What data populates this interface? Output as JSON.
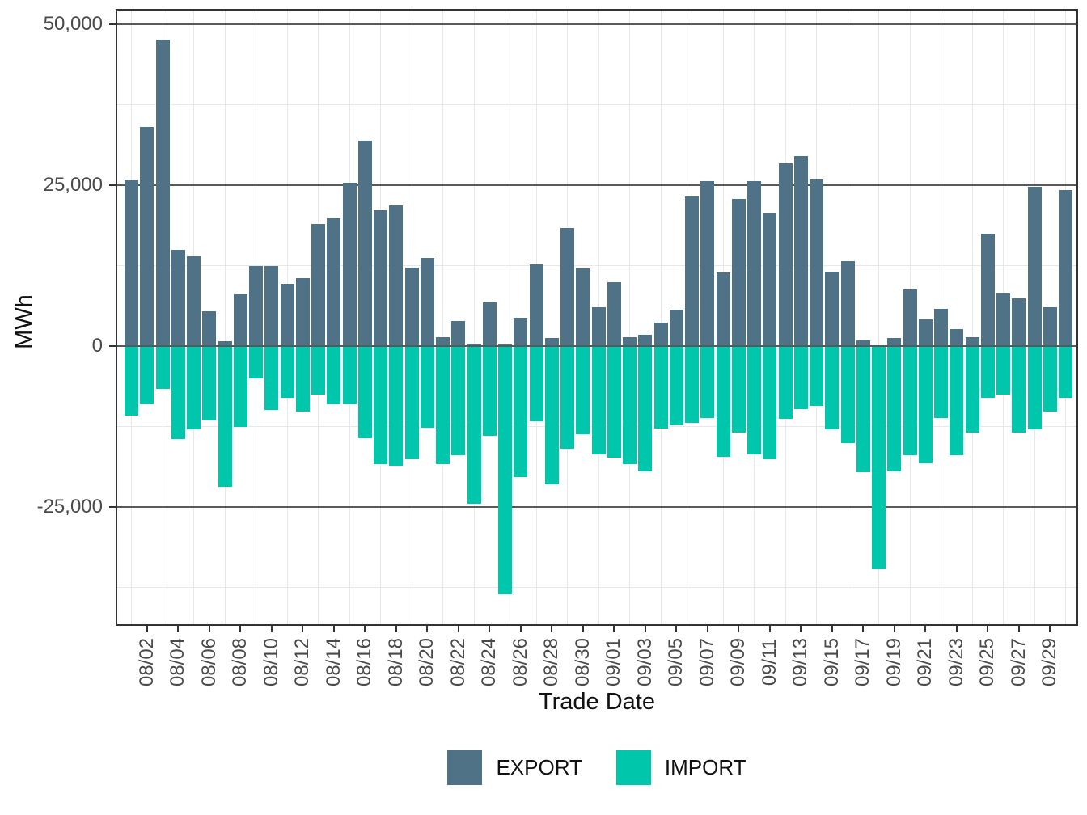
{
  "chart_data": {
    "type": "bar",
    "title": "",
    "xlabel": "Trade Date",
    "ylabel": "MWh",
    "legend_position": "bottom",
    "grid": true,
    "categories": [
      "08/01",
      "08/02",
      "08/03",
      "08/04",
      "08/05",
      "08/06",
      "08/07",
      "08/08",
      "08/09",
      "08/10",
      "08/11",
      "08/12",
      "08/13",
      "08/14",
      "08/15",
      "08/16",
      "08/17",
      "08/18",
      "08/19",
      "08/20",
      "08/21",
      "08/22",
      "08/23",
      "08/24",
      "08/25",
      "08/26",
      "08/27",
      "08/28",
      "08/29",
      "08/30",
      "08/31",
      "09/01",
      "09/02",
      "09/03",
      "09/04",
      "09/05",
      "09/06",
      "09/07",
      "09/08",
      "09/09",
      "09/10",
      "09/11",
      "09/12",
      "09/13",
      "09/14",
      "09/15",
      "09/16",
      "09/17",
      "09/18",
      "09/19",
      "09/20",
      "09/21",
      "09/22",
      "09/23",
      "09/24",
      "09/25",
      "09/26",
      "09/27",
      "09/28",
      "09/29",
      "09/30"
    ],
    "series": [
      {
        "name": "EXPORT",
        "color": "#4F7286",
        "values": [
          25800,
          34100,
          47600,
          14900,
          14000,
          5400,
          700,
          8100,
          12400,
          12400,
          9700,
          10600,
          19000,
          19800,
          25400,
          31900,
          21100,
          21800,
          12200,
          13700,
          1400,
          3900,
          400,
          6800,
          300,
          4400,
          12700,
          1300,
          18300,
          12100,
          6000,
          9900,
          1400,
          1700,
          3700,
          5600,
          23300,
          25600,
          11400,
          22900,
          25600,
          20600,
          28400,
          29500,
          25900,
          11600,
          13200,
          900,
          0,
          1200,
          8800,
          4200,
          5800,
          2600,
          1400,
          17400,
          8200,
          7400,
          24800,
          6000,
          24300
        ]
      },
      {
        "name": "IMPORT",
        "color": "#00C6AC",
        "values": [
          -10800,
          -9100,
          -6700,
          -14400,
          -12900,
          -11500,
          -21900,
          -12600,
          -5000,
          -9900,
          -8000,
          -10200,
          -7600,
          -9100,
          -9000,
          -14300,
          -18400,
          -18600,
          -17600,
          -12700,
          -18300,
          -16900,
          -24500,
          -14000,
          -38600,
          -20300,
          -11700,
          -21500,
          -16000,
          -13700,
          -16800,
          -17300,
          -18300,
          -19500,
          -12800,
          -12300,
          -11900,
          -11200,
          -17200,
          -13400,
          -16800,
          -17600,
          -11300,
          -9800,
          -9300,
          -13000,
          -15100,
          -19600,
          -34700,
          -19500,
          -16900,
          -18200,
          -11200,
          -17000,
          -13500,
          -8100,
          -7500,
          -13400,
          -12900,
          -10200,
          -8100
        ]
      }
    ],
    "y_axis": {
      "ticks": [
        {
          "value": 50000,
          "label": "50,000"
        },
        {
          "value": 25000,
          "label": "25,000"
        },
        {
          "value": 0,
          "label": "0"
        },
        {
          "value": -25000,
          "label": "-25,000"
        }
      ],
      "minor": [
        37500,
        12500,
        -12500,
        -37500
      ],
      "range": [
        -43500,
        52500
      ]
    },
    "x_tick_labels": [
      "08/02",
      "08/04",
      "08/06",
      "08/08",
      "08/10",
      "08/12",
      "08/14",
      "08/16",
      "08/18",
      "08/20",
      "08/22",
      "08/24",
      "08/26",
      "08/28",
      "08/30",
      "09/01",
      "09/03",
      "09/05",
      "09/07",
      "09/09",
      "09/11",
      "09/13",
      "09/15",
      "09/17",
      "09/19",
      "09/21",
      "09/23",
      "09/25",
      "09/27",
      "09/29"
    ],
    "colors": {
      "grid_major": "#595959",
      "grid_minor": "#E8E8E8",
      "panel_border": "#333333",
      "tick_mark": "#333333",
      "axis_text": "#4a4a4a"
    }
  }
}
